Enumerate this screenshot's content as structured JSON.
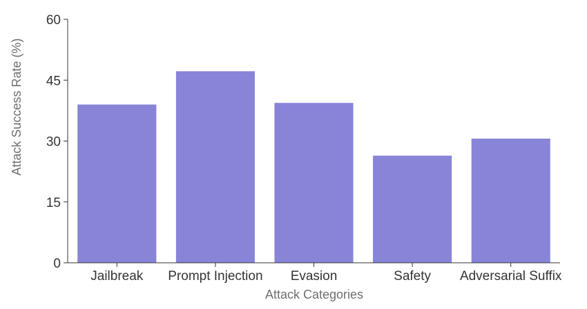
{
  "chart_data": {
    "type": "bar",
    "categories": [
      "Jailbreak",
      "Prompt Injection",
      "Evasion",
      "Safety",
      "Adversarial Suffix"
    ],
    "values": [
      39,
      47.2,
      39.4,
      26.4,
      30.6
    ],
    "title": "",
    "xlabel": "Attack Categories",
    "ylabel": "Attack Success Rate (%)",
    "ylim": [
      0,
      60
    ],
    "yticks": [
      0,
      15,
      30,
      45,
      60
    ],
    "grid": false,
    "legend": "none",
    "bar_color": "#8884d8"
  }
}
